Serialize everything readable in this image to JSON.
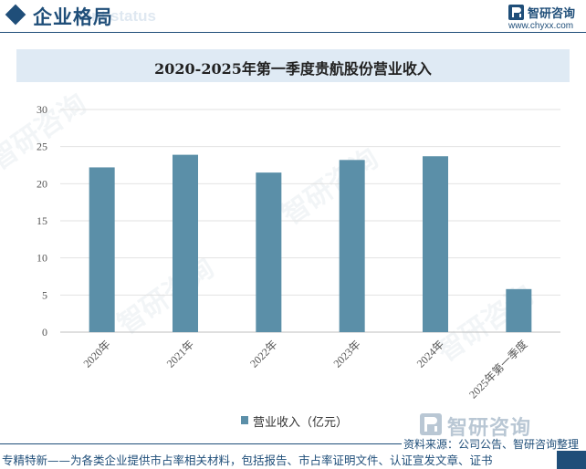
{
  "header": {
    "title": "企业格局",
    "subtitle": "ient status"
  },
  "logo": {
    "name": "智研咨询",
    "url": "www.chyxx.com"
  },
  "chart_data": {
    "type": "bar",
    "title": "2020-2025年第一季度贵航股份营业收入",
    "categories": [
      "2020年",
      "2021年",
      "2022年",
      "2023年",
      "2024年",
      "2025年第一季度"
    ],
    "series": [
      {
        "name": "营业收入（亿元）",
        "values": [
          22.2,
          23.9,
          21.5,
          23.2,
          23.7,
          5.8
        ]
      }
    ],
    "ylim": [
      0,
      30
    ],
    "yticks": [
      0,
      5,
      10,
      15,
      20,
      25,
      30
    ],
    "grid": true,
    "legend_position": "bottom",
    "bar_color": "#5b8fa8",
    "xlabel": "",
    "ylabel": ""
  },
  "source": {
    "logo_name": "智研咨询",
    "text": "资料来源：公司公告、智研咨询整理"
  },
  "footer": {
    "text": "专精特新——为各类企业提供市占率相关材料，包括报告、市占率证明文件、认证宣发文章、证书"
  },
  "colors": {
    "brand": "#1f4e79",
    "bar": "#5b8fa8",
    "title_band": "#dfeaf4"
  }
}
